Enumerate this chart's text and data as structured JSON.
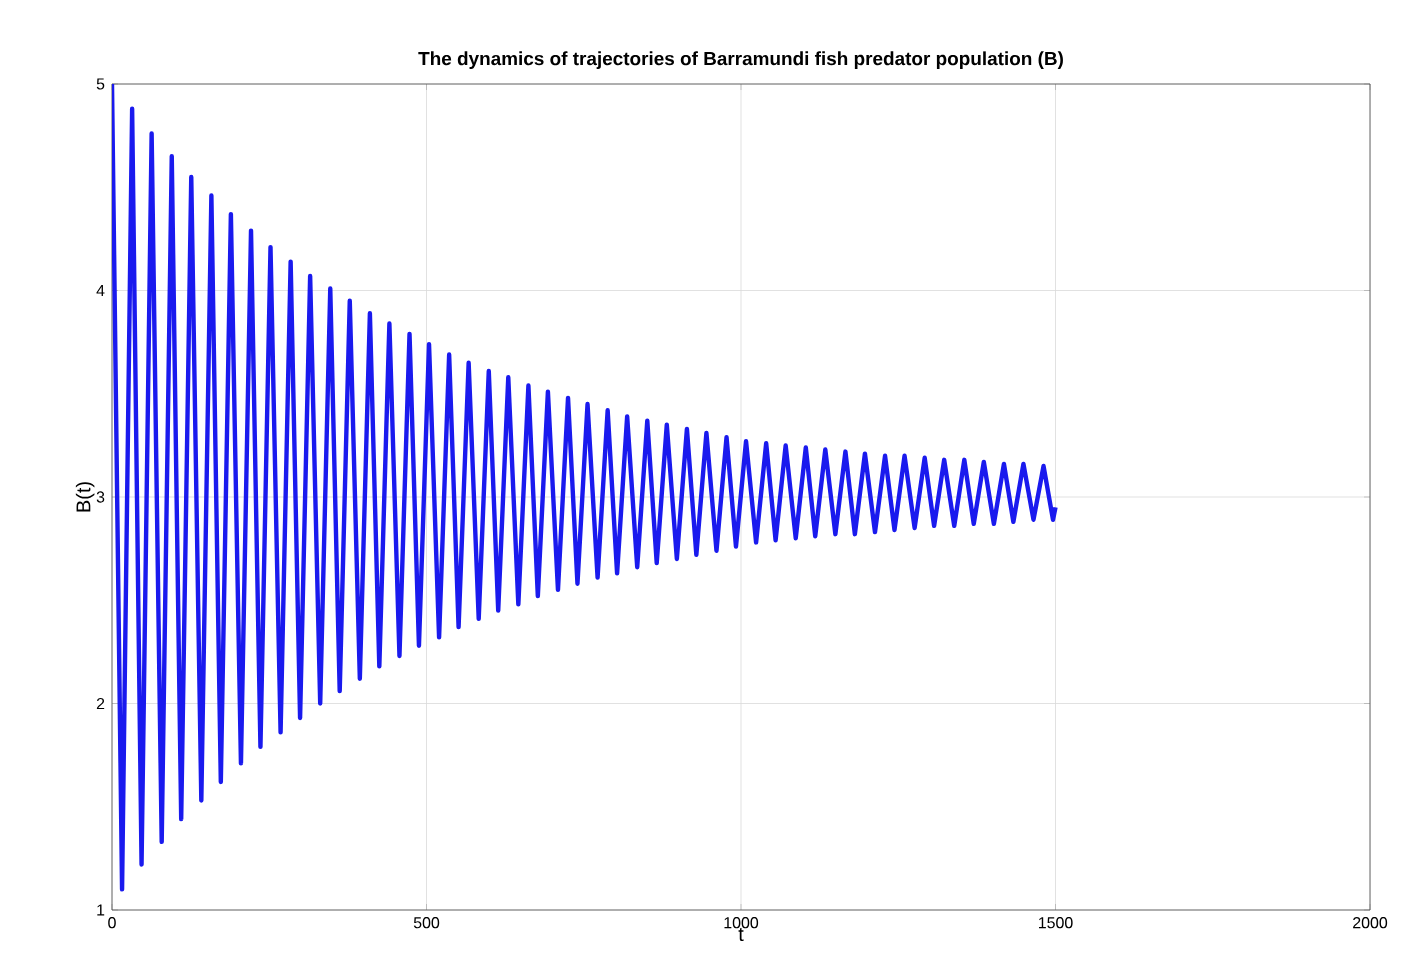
{
  "chart_data": {
    "type": "line",
    "title": "The dynamics of trajectories of Barramundi fish predator population (B)",
    "xlabel": "t",
    "ylabel": "B(t)",
    "xlim": [
      0,
      2000
    ],
    "ylim": [
      1,
      5
    ],
    "xticks": [
      0,
      500,
      1000,
      1500,
      2000
    ],
    "yticks": [
      1,
      2,
      3,
      4,
      5
    ],
    "grid": true,
    "marker": "none",
    "line_style": "solid",
    "series": [
      {
        "color": "#1a1aee",
        "x": [
          0,
          16,
          32,
          47,
          63,
          79,
          95,
          110,
          126,
          142,
          158,
          173,
          189,
          205,
          221,
          236,
          252,
          268,
          284,
          299,
          315,
          331,
          347,
          362,
          378,
          394,
          410,
          425,
          441,
          457,
          473,
          488,
          504,
          520,
          536,
          551,
          567,
          583,
          599,
          614,
          630,
          646,
          662,
          677,
          693,
          709,
          725,
          740,
          756,
          772,
          788,
          803,
          819,
          835,
          851,
          866,
          882,
          898,
          914,
          929,
          945,
          961,
          977,
          992,
          1008,
          1024,
          1040,
          1055,
          1071,
          1087,
          1103,
          1118,
          1134,
          1150,
          1166,
          1181,
          1197,
          1213,
          1229,
          1244,
          1260,
          1276,
          1292,
          1307,
          1323,
          1339,
          1355,
          1370,
          1386,
          1402,
          1418,
          1433,
          1449,
          1465,
          1481,
          1496,
          1500
        ],
        "values": [
          5.0,
          1.1,
          4.88,
          1.22,
          4.76,
          1.33,
          4.65,
          1.44,
          4.55,
          1.53,
          4.46,
          1.62,
          4.37,
          1.71,
          4.29,
          1.79,
          4.21,
          1.86,
          4.14,
          1.93,
          4.07,
          2.0,
          4.01,
          2.06,
          3.95,
          2.12,
          3.89,
          2.18,
          3.84,
          2.23,
          3.79,
          2.28,
          3.74,
          2.32,
          3.69,
          2.37,
          3.65,
          2.41,
          3.61,
          2.45,
          3.58,
          2.48,
          3.54,
          2.52,
          3.51,
          2.55,
          3.48,
          2.58,
          3.45,
          2.61,
          3.42,
          2.63,
          3.39,
          2.66,
          3.37,
          2.68,
          3.35,
          2.7,
          3.33,
          2.72,
          3.31,
          2.74,
          3.29,
          2.76,
          3.27,
          2.78,
          3.26,
          2.79,
          3.25,
          2.8,
          3.24,
          2.81,
          3.23,
          2.82,
          3.22,
          2.82,
          3.21,
          2.83,
          3.2,
          2.84,
          3.2,
          2.85,
          3.19,
          2.86,
          3.18,
          2.86,
          3.18,
          2.87,
          3.17,
          2.87,
          3.16,
          2.88,
          3.16,
          2.89,
          3.15,
          2.89,
          2.95
        ]
      }
    ]
  }
}
